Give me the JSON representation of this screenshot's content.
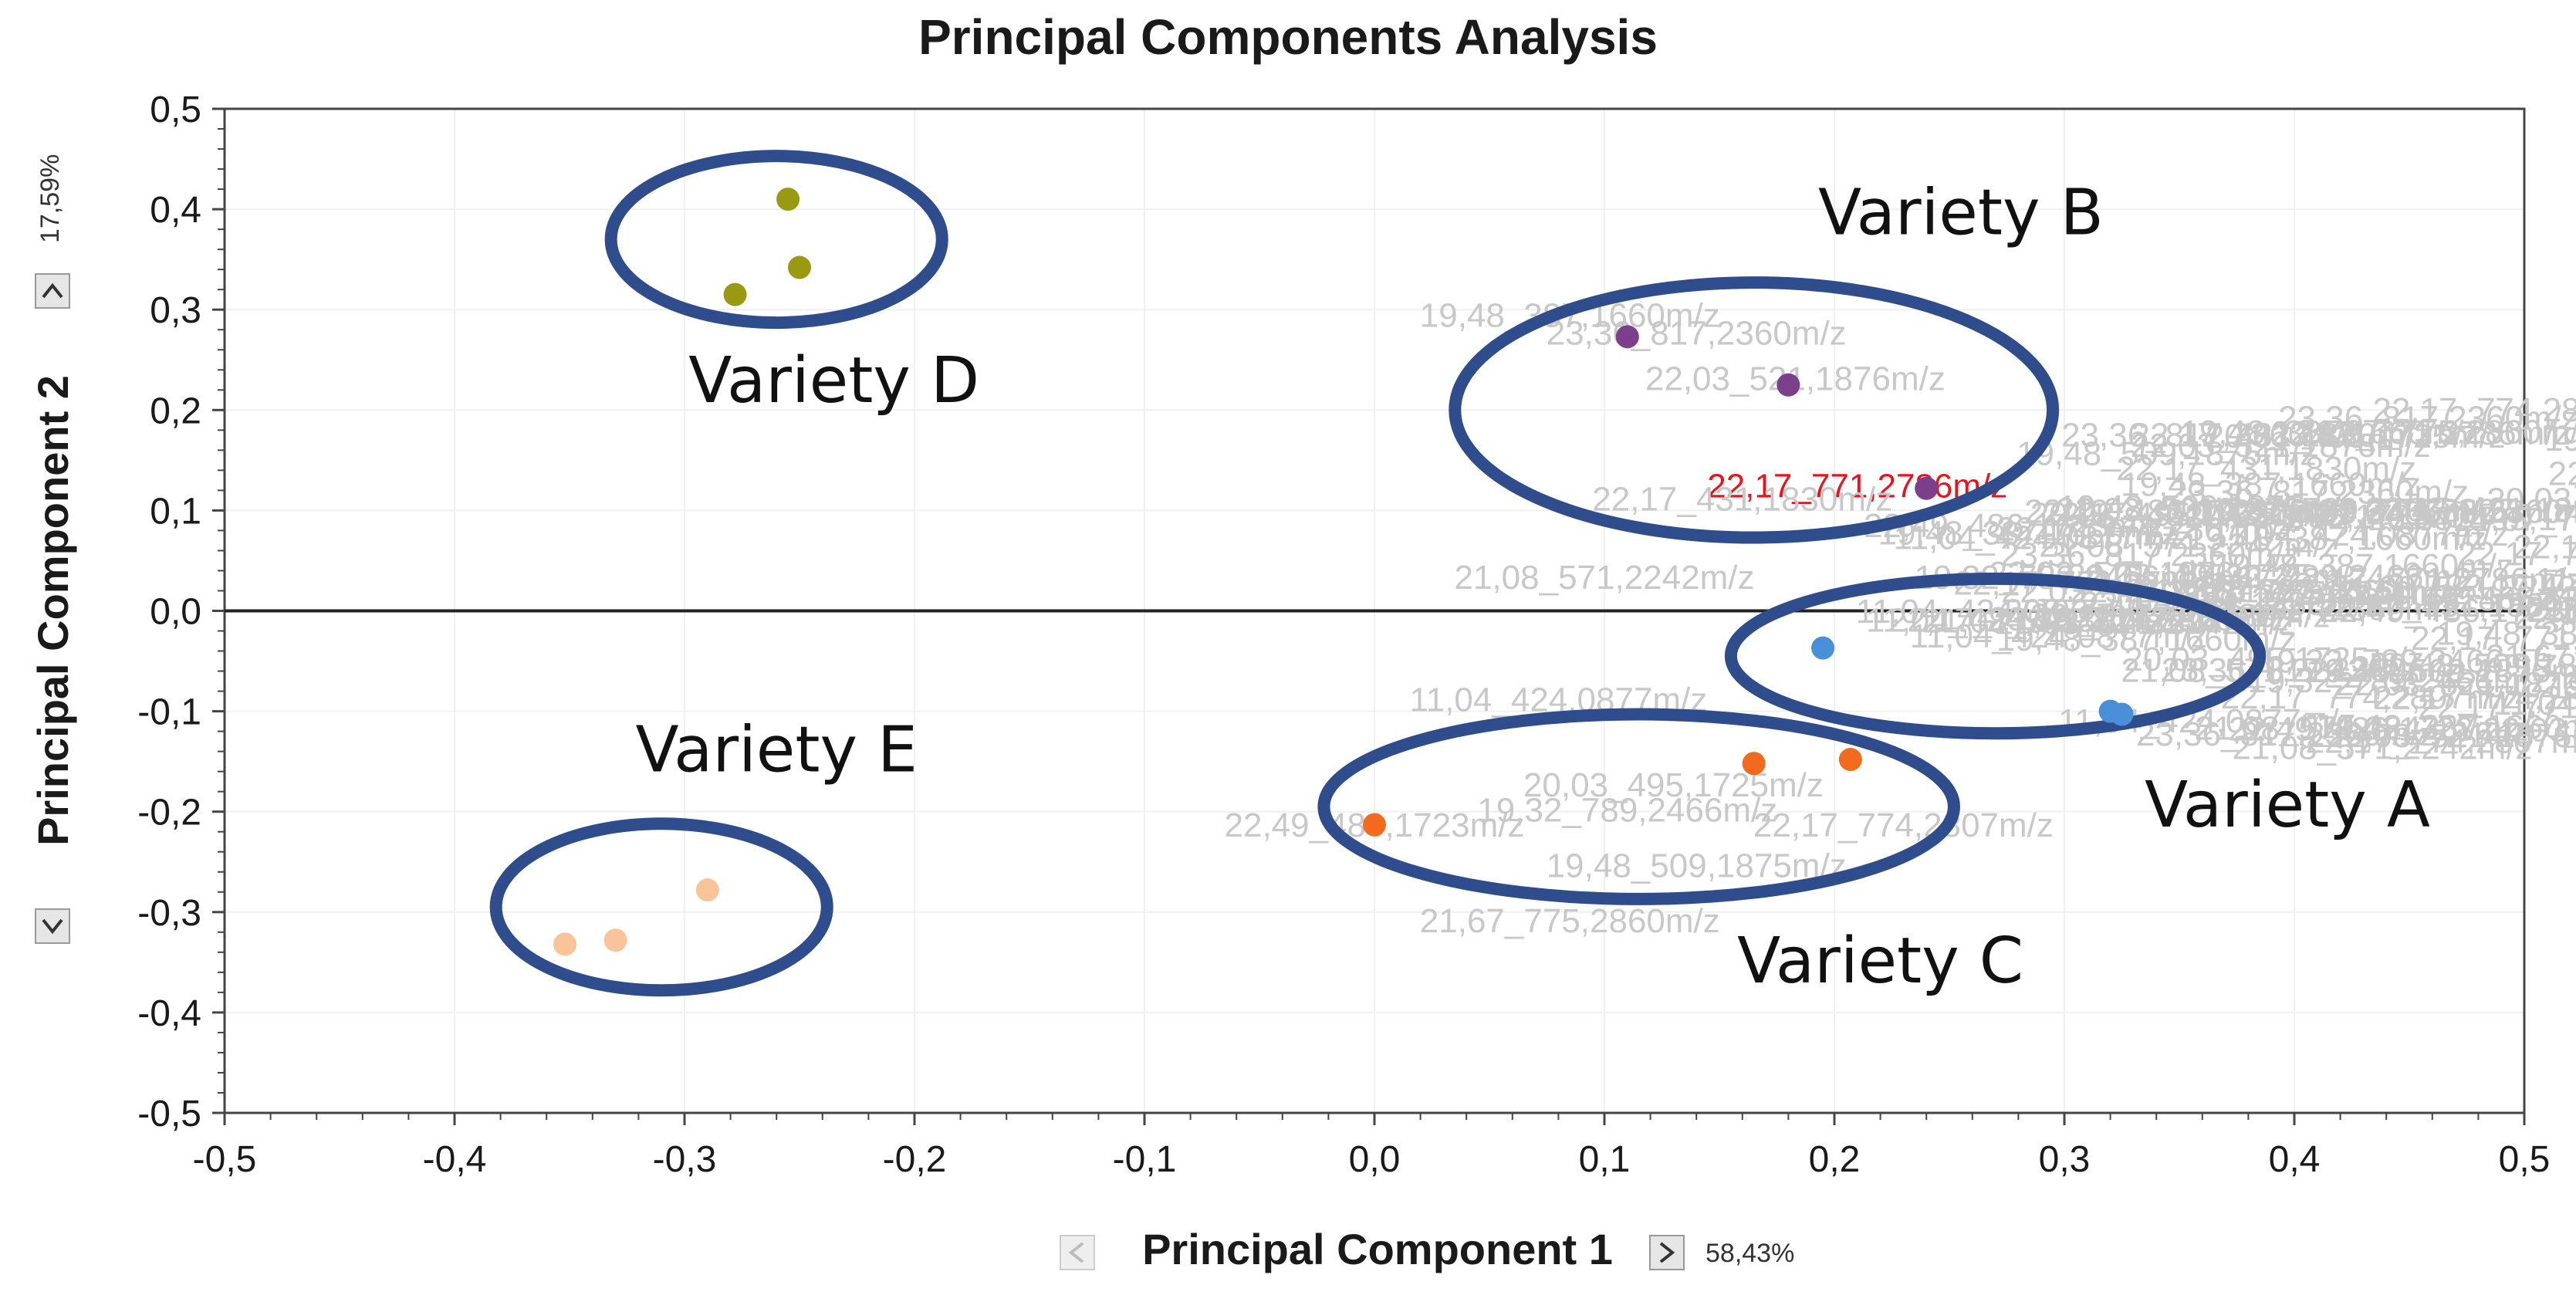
{
  "chart_data": {
    "type": "scatter",
    "title": "Principal Components Analysis",
    "xlabel": "Principal Component 1",
    "ylabel": "Principal Component 2",
    "x_variance": "58,43%",
    "y_variance": "17,59%",
    "xlim": [
      -0.5,
      0.5
    ],
    "ylim": [
      -0.5,
      0.5
    ],
    "x_ticks": [
      "-0,5",
      "-0,4",
      "-0,3",
      "-0,2",
      "-0,1",
      "0,0",
      "0,1",
      "0,2",
      "0,3",
      "0,4",
      "0,5"
    ],
    "y_ticks": [
      "0,5",
      "0,4",
      "0,3",
      "0,2",
      "0,1",
      "0,0",
      "-0,1",
      "-0,2",
      "-0,3",
      "-0,4",
      "-0,5"
    ],
    "series": [
      {
        "color": "#4a90d9",
        "points": [
          [
            0.195,
            -0.037
          ],
          [
            0.32,
            -0.1
          ],
          [
            0.325,
            -0.103
          ]
        ]
      },
      {
        "color": "#7b3f8c",
        "points": [
          [
            0.11,
            0.273
          ],
          [
            0.18,
            0.225
          ],
          [
            0.24,
            0.122
          ]
        ]
      },
      {
        "color": "#f26a1b",
        "points": [
          [
            0.0,
            -0.213
          ],
          [
            0.165,
            -0.152
          ],
          [
            0.207,
            -0.148
          ]
        ]
      },
      {
        "color": "#9a9a12",
        "points": [
          [
            -0.255,
            0.41
          ],
          [
            -0.25,
            0.342
          ],
          [
            -0.278,
            0.315
          ]
        ]
      },
      {
        "color": "#f9c49a",
        "points": [
          [
            -0.29,
            -0.278
          ],
          [
            -0.33,
            -0.328
          ],
          [
            -0.352,
            -0.332
          ]
        ]
      }
    ],
    "clusters": [
      {
        "label": "Variety A",
        "cx": 0.27,
        "cy": -0.045,
        "rx": 0.115,
        "ry": 0.077,
        "label_x": 0.397,
        "label_y": -0.215
      },
      {
        "label": "Variety B",
        "cx": 0.165,
        "cy": 0.2,
        "rx": 0.13,
        "ry": 0.127,
        "label_x": 0.255,
        "label_y": 0.375
      },
      {
        "label": "Variety C",
        "cx": 0.115,
        "cy": -0.195,
        "rx": 0.137,
        "ry": 0.092,
        "label_x": 0.22,
        "label_y": -0.37
      },
      {
        "label": "Variety D",
        "cx": -0.26,
        "cy": 0.37,
        "rx": 0.072,
        "ry": 0.083,
        "label_x": -0.235,
        "label_y": 0.208
      },
      {
        "label": "Variety E",
        "cx": -0.31,
        "cy": -0.295,
        "rx": 0.072,
        "ry": 0.083,
        "label_x": -0.26,
        "label_y": -0.16
      }
    ],
    "mz_labels": [
      {
        "text": "22,17_771,2786m/z",
        "x": 0.21,
        "y": 0.113,
        "highlight": true
      },
      {
        "text": "19,48_387,1660m/z",
        "x": 0.085,
        "y": 0.283
      },
      {
        "text": "23,36_817,2360m/z",
        "x": 0.14,
        "y": 0.265
      },
      {
        "text": "22,03_521,1876m/z",
        "x": 0.183,
        "y": 0.22
      },
      {
        "text": "22,17_431,1830m/z",
        "x": 0.16,
        "y": 0.1
      },
      {
        "text": "21,08_571,2242m/z",
        "x": 0.1,
        "y": 0.022
      },
      {
        "text": "11,04_424,0877m/z",
        "x": 0.08,
        "y": -0.1
      },
      {
        "text": "20,03_495,1725m/z",
        "x": 0.13,
        "y": -0.185
      },
      {
        "text": "19,32_789,2466m/z",
        "x": 0.11,
        "y": -0.21
      },
      {
        "text": "22,17_774,2807m/z",
        "x": 0.23,
        "y": -0.225
      },
      {
        "text": "22,49_486,1723m/z",
        "x": 0.0,
        "y": -0.225
      },
      {
        "text": "19,48_509,1875m/z",
        "x": 0.14,
        "y": -0.265
      },
      {
        "text": "21,67_775,2860m/z",
        "x": 0.085,
        "y": -0.32
      }
    ]
  }
}
